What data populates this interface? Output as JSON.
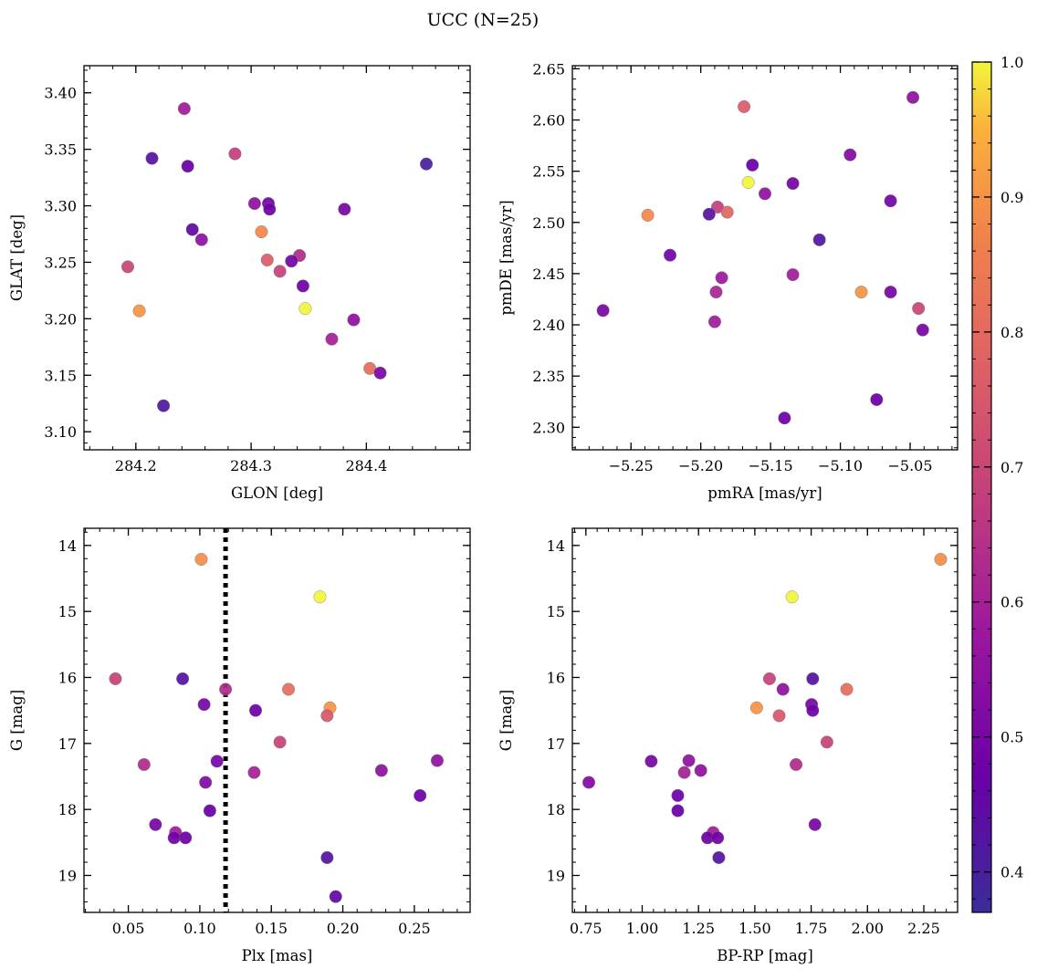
{
  "chart_data": {
    "title": "UCC (N=25)",
    "colorbar": {
      "colormap": "plasma",
      "range": [
        0.37,
        1.0
      ],
      "ticks": [
        "0.4",
        "0.5",
        "0.6",
        "0.7",
        "0.8",
        "0.9",
        "1.0"
      ],
      "tick_values": [
        0.4,
        0.5,
        0.6,
        0.7,
        0.8,
        0.9,
        1.0
      ]
    },
    "panels": [
      {
        "type": "scatter",
        "xlabel": "GLON [deg]",
        "ylabel": "GLAT [deg]",
        "xlim": [
          284.155,
          284.49
        ],
        "ylim": [
          3.084,
          3.424
        ],
        "x_ticks": [
          284.2,
          284.3,
          284.4
        ],
        "x_tick_labels": [
          "284.2",
          "284.3",
          "284.4"
        ],
        "y_ticks": [
          3.1,
          3.15,
          3.2,
          3.25,
          3.3,
          3.35,
          3.4
        ],
        "y_tick_labels": [
          "3.10",
          "3.15",
          "3.20",
          "3.25",
          "3.30",
          "3.35",
          "3.40"
        ],
        "invert_y": false,
        "points": [
          {
            "x": 284.242,
            "y": 3.386,
            "c": 0.59
          },
          {
            "x": 284.214,
            "y": 3.342,
            "c": 0.43
          },
          {
            "x": 284.245,
            "y": 3.335,
            "c": 0.47
          },
          {
            "x": 284.286,
            "y": 3.346,
            "c": 0.68
          },
          {
            "x": 284.452,
            "y": 3.337,
            "c": 0.4
          },
          {
            "x": 284.303,
            "y": 3.302,
            "c": 0.55
          },
          {
            "x": 284.315,
            "y": 3.302,
            "c": 0.49
          },
          {
            "x": 284.316,
            "y": 3.297,
            "c": 0.48
          },
          {
            "x": 284.381,
            "y": 3.297,
            "c": 0.5
          },
          {
            "x": 284.249,
            "y": 3.279,
            "c": 0.45
          },
          {
            "x": 284.309,
            "y": 3.277,
            "c": 0.88
          },
          {
            "x": 284.257,
            "y": 3.27,
            "c": 0.55
          },
          {
            "x": 284.342,
            "y": 3.256,
            "c": 0.63
          },
          {
            "x": 284.314,
            "y": 3.252,
            "c": 0.76
          },
          {
            "x": 284.335,
            "y": 3.251,
            "c": 0.49
          },
          {
            "x": 284.193,
            "y": 3.246,
            "c": 0.7
          },
          {
            "x": 284.325,
            "y": 3.242,
            "c": 0.69
          },
          {
            "x": 284.345,
            "y": 3.229,
            "c": 0.48
          },
          {
            "x": 284.347,
            "y": 3.209,
            "c": 1.0
          },
          {
            "x": 284.203,
            "y": 3.207,
            "c": 0.9
          },
          {
            "x": 284.389,
            "y": 3.199,
            "c": 0.55
          },
          {
            "x": 284.37,
            "y": 3.182,
            "c": 0.6
          },
          {
            "x": 284.403,
            "y": 3.156,
            "c": 0.81
          },
          {
            "x": 284.412,
            "y": 3.152,
            "c": 0.5
          },
          {
            "x": 284.224,
            "y": 3.123,
            "c": 0.42
          }
        ]
      },
      {
        "type": "scatter",
        "xlabel": "pmRA [mas/yr]",
        "ylabel": "pmDE [mas/yr]",
        "xlim": [
          -5.292,
          -5.016
        ],
        "ylim": [
          2.278,
          2.653
        ],
        "x_ticks": [
          -5.25,
          -5.2,
          -5.15,
          -5.1,
          -5.05
        ],
        "x_tick_labels": [
          "−5.25",
          "−5.20",
          "−5.15",
          "−5.10",
          "−5.05"
        ],
        "y_ticks": [
          2.3,
          2.35,
          2.4,
          2.45,
          2.5,
          2.55,
          2.6,
          2.65
        ],
        "y_tick_labels": [
          "2.30",
          "2.35",
          "2.40",
          "2.45",
          "2.50",
          "2.55",
          "2.60",
          "2.65"
        ],
        "invert_y": false,
        "points": [
          {
            "x": -5.048,
            "y": 2.622,
            "c": 0.55
          },
          {
            "x": -5.169,
            "y": 2.613,
            "c": 0.76
          },
          {
            "x": -5.093,
            "y": 2.566,
            "c": 0.52
          },
          {
            "x": -5.163,
            "y": 2.556,
            "c": 0.47
          },
          {
            "x": -5.166,
            "y": 2.539,
            "c": 1.0
          },
          {
            "x": -5.134,
            "y": 2.538,
            "c": 0.49
          },
          {
            "x": -5.154,
            "y": 2.528,
            "c": 0.55
          },
          {
            "x": -5.064,
            "y": 2.521,
            "c": 0.49
          },
          {
            "x": -5.188,
            "y": 2.515,
            "c": 0.68
          },
          {
            "x": -5.181,
            "y": 2.51,
            "c": 0.79
          },
          {
            "x": -5.194,
            "y": 2.508,
            "c": 0.43
          },
          {
            "x": -5.238,
            "y": 2.507,
            "c": 0.88
          },
          {
            "x": -5.115,
            "y": 2.483,
            "c": 0.42
          },
          {
            "x": -5.222,
            "y": 2.468,
            "c": 0.49
          },
          {
            "x": -5.134,
            "y": 2.449,
            "c": 0.59
          },
          {
            "x": -5.185,
            "y": 2.446,
            "c": 0.58
          },
          {
            "x": -5.189,
            "y": 2.432,
            "c": 0.61
          },
          {
            "x": -5.085,
            "y": 2.432,
            "c": 0.9
          },
          {
            "x": -5.064,
            "y": 2.432,
            "c": 0.5
          },
          {
            "x": -5.044,
            "y": 2.416,
            "c": 0.7
          },
          {
            "x": -5.27,
            "y": 2.414,
            "c": 0.5
          },
          {
            "x": -5.19,
            "y": 2.403,
            "c": 0.59
          },
          {
            "x": -5.041,
            "y": 2.395,
            "c": 0.5
          },
          {
            "x": -5.074,
            "y": 2.327,
            "c": 0.47
          },
          {
            "x": -5.14,
            "y": 2.309,
            "c": 0.48
          }
        ]
      },
      {
        "type": "scatter",
        "xlabel": "Plx [mas]",
        "ylabel": "G [mag]",
        "xlim": [
          0.019,
          0.289
        ],
        "ylim": [
          13.74,
          19.56
        ],
        "x_ticks": [
          0.05,
          0.1,
          0.15,
          0.2,
          0.25
        ],
        "x_tick_labels": [
          "0.05",
          "0.10",
          "0.15",
          "0.20",
          "0.25"
        ],
        "y_ticks": [
          14,
          15,
          16,
          17,
          18,
          19
        ],
        "y_tick_labels": [
          "14",
          "15",
          "16",
          "17",
          "18",
          "19"
        ],
        "invert_y": true,
        "vline": {
          "x": 0.118,
          "style": "dotted",
          "color": "#000000"
        },
        "points": [
          {
            "x": 0.101,
            "y": 14.21,
            "c": 0.89
          },
          {
            "x": 0.184,
            "y": 14.78,
            "c": 1.0
          },
          {
            "x": 0.041,
            "y": 16.02,
            "c": 0.69
          },
          {
            "x": 0.088,
            "y": 16.02,
            "c": 0.43
          },
          {
            "x": 0.118,
            "y": 16.18,
            "c": 0.63
          },
          {
            "x": 0.162,
            "y": 16.18,
            "c": 0.81
          },
          {
            "x": 0.103,
            "y": 16.41,
            "c": 0.5
          },
          {
            "x": 0.191,
            "y": 16.46,
            "c": 0.9
          },
          {
            "x": 0.139,
            "y": 16.5,
            "c": 0.48
          },
          {
            "x": 0.189,
            "y": 16.58,
            "c": 0.75
          },
          {
            "x": 0.156,
            "y": 16.98,
            "c": 0.69
          },
          {
            "x": 0.112,
            "y": 17.27,
            "c": 0.5
          },
          {
            "x": 0.266,
            "y": 17.26,
            "c": 0.55
          },
          {
            "x": 0.061,
            "y": 17.32,
            "c": 0.63
          },
          {
            "x": 0.227,
            "y": 17.41,
            "c": 0.55
          },
          {
            "x": 0.138,
            "y": 17.44,
            "c": 0.6
          },
          {
            "x": 0.104,
            "y": 17.59,
            "c": 0.52
          },
          {
            "x": 0.254,
            "y": 17.79,
            "c": 0.48
          },
          {
            "x": 0.107,
            "y": 18.02,
            "c": 0.47
          },
          {
            "x": 0.069,
            "y": 18.23,
            "c": 0.5
          },
          {
            "x": 0.083,
            "y": 18.35,
            "c": 0.59
          },
          {
            "x": 0.082,
            "y": 18.43,
            "c": 0.48
          },
          {
            "x": 0.09,
            "y": 18.43,
            "c": 0.48
          },
          {
            "x": 0.189,
            "y": 18.73,
            "c": 0.43
          },
          {
            "x": 0.195,
            "y": 19.32,
            "c": 0.45
          }
        ]
      },
      {
        "type": "scatter",
        "xlabel": "BP-RP [mag]",
        "ylabel": "G [mag]",
        "xlim": [
          0.69,
          2.4
        ],
        "ylim": [
          13.74,
          19.56
        ],
        "x_ticks": [
          0.75,
          1.0,
          1.25,
          1.5,
          1.75,
          2.0,
          2.25
        ],
        "x_tick_labels": [
          "0.75",
          "1.00",
          "1.25",
          "1.50",
          "1.75",
          "2.00",
          "2.25"
        ],
        "y_ticks": [
          14,
          15,
          16,
          17,
          18,
          19
        ],
        "y_tick_labels": [
          "14",
          "15",
          "16",
          "17",
          "18",
          "19"
        ],
        "invert_y": true,
        "points": [
          {
            "x": 2.325,
            "y": 14.21,
            "c": 0.89
          },
          {
            "x": 1.665,
            "y": 14.78,
            "c": 1.0
          },
          {
            "x": 1.565,
            "y": 16.02,
            "c": 0.69
          },
          {
            "x": 1.757,
            "y": 16.02,
            "c": 0.43
          },
          {
            "x": 1.625,
            "y": 16.18,
            "c": 0.55
          },
          {
            "x": 1.908,
            "y": 16.18,
            "c": 0.81
          },
          {
            "x": 1.752,
            "y": 16.41,
            "c": 0.5
          },
          {
            "x": 1.508,
            "y": 16.46,
            "c": 0.9
          },
          {
            "x": 1.757,
            "y": 16.5,
            "c": 0.48
          },
          {
            "x": 1.608,
            "y": 16.58,
            "c": 0.75
          },
          {
            "x": 1.82,
            "y": 16.98,
            "c": 0.69
          },
          {
            "x": 1.04,
            "y": 17.27,
            "c": 0.5
          },
          {
            "x": 1.207,
            "y": 17.26,
            "c": 0.55
          },
          {
            "x": 1.683,
            "y": 17.32,
            "c": 0.63
          },
          {
            "x": 1.26,
            "y": 17.41,
            "c": 0.55
          },
          {
            "x": 1.187,
            "y": 17.44,
            "c": 0.6
          },
          {
            "x": 0.763,
            "y": 17.59,
            "c": 0.52
          },
          {
            "x": 1.158,
            "y": 17.79,
            "c": 0.48
          },
          {
            "x": 1.158,
            "y": 18.02,
            "c": 0.47
          },
          {
            "x": 1.767,
            "y": 18.23,
            "c": 0.5
          },
          {
            "x": 1.315,
            "y": 18.35,
            "c": 0.59
          },
          {
            "x": 1.29,
            "y": 18.43,
            "c": 0.48
          },
          {
            "x": 1.335,
            "y": 18.43,
            "c": 0.48
          },
          {
            "x": 1.34,
            "y": 18.73,
            "c": 0.43
          }
        ]
      }
    ]
  }
}
